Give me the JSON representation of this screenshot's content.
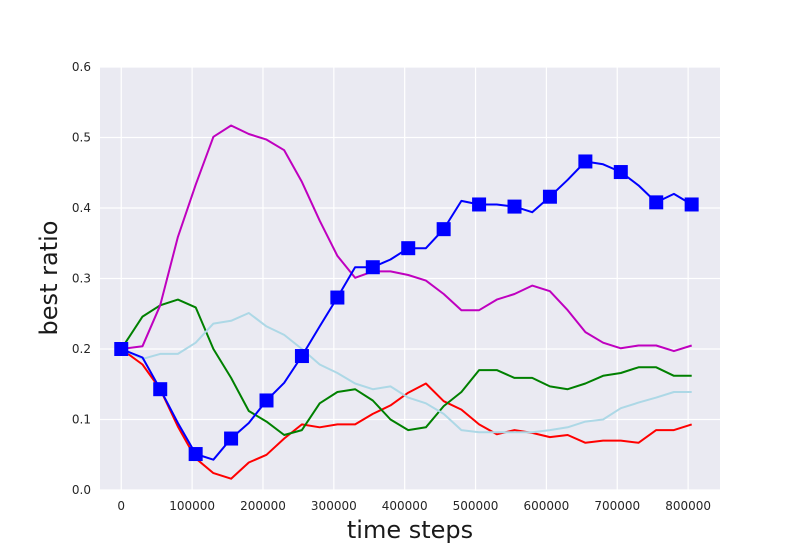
{
  "chart_data": {
    "type": "line",
    "title": "",
    "xlabel": "time steps",
    "ylabel": "best ratio",
    "xlim": [
      -30000,
      845000
    ],
    "ylim": [
      0,
      0.6
    ],
    "x_ticks": [
      0,
      100000,
      200000,
      300000,
      400000,
      500000,
      600000,
      700000,
      800000
    ],
    "y_ticks": [
      0.0,
      0.1,
      0.2,
      0.3,
      0.4,
      0.5,
      0.6
    ],
    "x_tick_labels": [
      "0",
      "100000",
      "200000",
      "300000",
      "400000",
      "500000",
      "600000",
      "700000",
      "800000"
    ],
    "y_tick_labels": [
      "0.0",
      "0.1",
      "0.2",
      "0.3",
      "0.4",
      "0.5",
      "0.6"
    ],
    "grid": true,
    "background": "#eaeaf2",
    "legend": "none",
    "x": [
      0,
      30000,
      55000,
      80000,
      105000,
      130000,
      155000,
      180000,
      205000,
      230000,
      255000,
      280000,
      305000,
      330000,
      355000,
      380000,
      405000,
      430000,
      455000,
      480000,
      505000,
      530000,
      555000,
      580000,
      605000,
      630000,
      655000,
      680000,
      705000,
      730000,
      755000,
      780000,
      805000
    ],
    "series": [
      {
        "color": "#0000ff",
        "marker": "square",
        "marker_x": [
          0,
          55000,
          105000,
          155000,
          205000,
          255000,
          305000,
          355000,
          405000,
          455000,
          505000,
          555000,
          605000,
          655000,
          705000,
          755000,
          805000
        ],
        "marker_y": [
          0.2,
          0.143,
          0.051,
          0.073,
          0.127,
          0.19,
          0.273,
          0.316,
          0.343,
          0.37,
          0.405,
          0.402,
          0.416,
          0.466,
          0.451,
          0.408,
          0.405
        ],
        "values": [
          0.2,
          0.188,
          0.143,
          0.095,
          0.051,
          0.043,
          0.073,
          0.095,
          0.127,
          0.152,
          0.19,
          0.232,
          0.273,
          0.316,
          0.316,
          0.327,
          0.343,
          0.343,
          0.37,
          0.41,
          0.405,
          0.405,
          0.402,
          0.394,
          0.416,
          0.44,
          0.466,
          0.462,
          0.451,
          0.432,
          0.408,
          0.42,
          0.405
        ]
      },
      {
        "color": "#ff0000",
        "values": [
          0.2,
          0.178,
          0.143,
          0.09,
          0.045,
          0.024,
          0.016,
          0.039,
          0.05,
          0.073,
          0.093,
          0.089,
          0.093,
          0.093,
          0.108,
          0.12,
          0.138,
          0.151,
          0.126,
          0.114,
          0.093,
          0.079,
          0.085,
          0.081,
          0.075,
          0.078,
          0.067,
          0.07,
          0.07,
          0.067,
          0.085,
          0.085,
          0.093
        ]
      },
      {
        "color": "#008000",
        "values": [
          0.2,
          0.246,
          0.262,
          0.27,
          0.259,
          0.2,
          0.159,
          0.112,
          0.097,
          0.078,
          0.085,
          0.123,
          0.139,
          0.143,
          0.127,
          0.1,
          0.085,
          0.089,
          0.119,
          0.139,
          0.17,
          0.17,
          0.159,
          0.159,
          0.147,
          0.143,
          0.151,
          0.162,
          0.166,
          0.174,
          0.174,
          0.162,
          0.162
        ]
      },
      {
        "color": "#add8e6",
        "values": [
          0.2,
          0.186,
          0.193,
          0.193,
          0.209,
          0.236,
          0.24,
          0.251,
          0.232,
          0.22,
          0.2,
          0.178,
          0.166,
          0.151,
          0.143,
          0.147,
          0.131,
          0.123,
          0.108,
          0.085,
          0.082,
          0.082,
          0.082,
          0.082,
          0.085,
          0.089,
          0.097,
          0.1,
          0.116,
          0.124,
          0.131,
          0.139,
          0.139
        ]
      },
      {
        "color": "#bf00bf",
        "values": [
          0.2,
          0.204,
          0.262,
          0.359,
          0.433,
          0.501,
          0.517,
          0.505,
          0.497,
          0.482,
          0.437,
          0.382,
          0.332,
          0.301,
          0.31,
          0.31,
          0.305,
          0.297,
          0.278,
          0.255,
          0.255,
          0.27,
          0.278,
          0.29,
          0.282,
          0.255,
          0.224,
          0.209,
          0.201,
          0.205,
          0.205,
          0.197,
          0.205
        ]
      }
    ]
  }
}
